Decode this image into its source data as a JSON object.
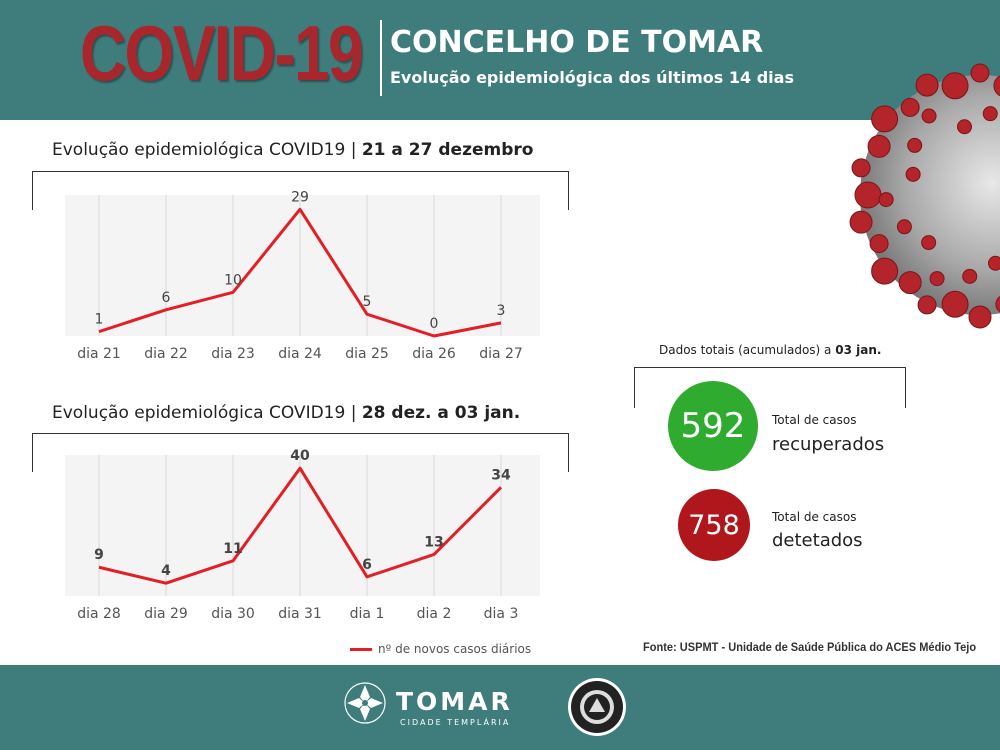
{
  "header": {
    "covid": "COVID-19",
    "title": "CONCELHO DE TOMAR",
    "subtitle": "Evolução epidemiológica dos últimos 14 dias"
  },
  "charts": [
    {
      "title_prefix": "Evolução epidemiológica COVID19 | ",
      "title_bold": "21  a 27 dezembro"
    },
    {
      "title_prefix": "Evolução epidemiológica COVID19 | ",
      "title_bold": "28 dez.  a 03 jan."
    }
  ],
  "chart_data": [
    {
      "type": "line",
      "categories": [
        "dia 21",
        "dia 22",
        "dia 23",
        "dia 24",
        "dia 25",
        "dia 26",
        "dia 27"
      ],
      "series": [
        {
          "name": "nº de novos casos diários",
          "values": [
            1,
            6,
            10,
            29,
            5,
            0,
            3
          ]
        }
      ],
      "title": "Evolução epidemiológica COVID19 | 21  a 27 dezembro",
      "xlabel": "",
      "ylabel": "",
      "ylim": [
        0,
        30
      ],
      "grid": "vertical",
      "color": "#e31e24"
    },
    {
      "type": "line",
      "categories": [
        "dia 28",
        "dia 29",
        "dia 30",
        "dia 31",
        "dia 1",
        "dia 2",
        "dia 3"
      ],
      "series": [
        {
          "name": "nº de novos casos diários",
          "values": [
            9,
            4,
            11,
            40,
            6,
            13,
            34
          ]
        }
      ],
      "title": "Evolução epidemiológica COVID19 | 28 dez.  a 03 jan.",
      "xlabel": "",
      "ylabel": "",
      "ylim": [
        0,
        41
      ],
      "grid": "vertical",
      "color": "#e31e24"
    }
  ],
  "legend": {
    "label": "nº de novos casos diários"
  },
  "totals": {
    "title_prefix": "Dados totais (acumulados) a ",
    "title_bold": "03 jan.",
    "recovered": {
      "value": "592",
      "small": "Total de casos",
      "big": "recuperados",
      "color": "#2fac2f"
    },
    "detected": {
      "value": "758",
      "small": "Total de casos",
      "big": "detetados",
      "color": "#b0171d"
    }
  },
  "source": "Fonte: USPMT - Unidade de Saúde Pública do ACES Médio Tejo",
  "footer": {
    "brand": "TOMAR",
    "brand_sub": "CIDADE TEMPLÁRIA"
  },
  "icons": {
    "virus": "coronavirus-illustration",
    "emblem": "templar-cross-emblem",
    "protecao_civil": "protecao-civil-logo"
  }
}
